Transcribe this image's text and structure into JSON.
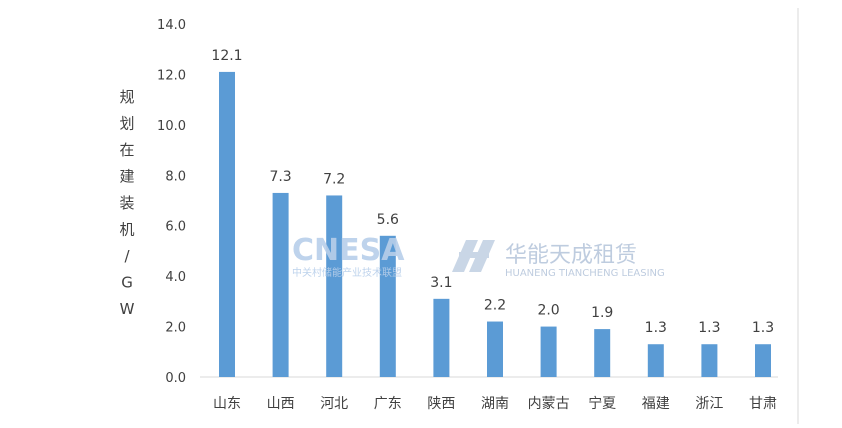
{
  "chart_data": {
    "type": "bar",
    "ylabel": "规划在建装机/GW",
    "ylim": [
      0,
      14
    ],
    "yticks": [
      "0.0",
      "2.0",
      "4.0",
      "6.0",
      "8.0",
      "10.0",
      "12.0",
      "14.0"
    ],
    "categories": [
      "山东",
      "山西",
      "河北",
      "广东",
      "陕西",
      "湖南",
      "内蒙古",
      "宁夏",
      "福建",
      "浙江",
      "甘肃"
    ],
    "values": [
      12.1,
      7.3,
      7.2,
      5.6,
      3.1,
      2.2,
      2.0,
      1.9,
      1.3,
      1.3,
      1.3
    ],
    "data_labels": [
      "12.1",
      "7.3",
      "7.2",
      "5.6",
      "3.1",
      "2.2",
      "2.0",
      "1.9",
      "1.3",
      "1.3",
      "1.3"
    ],
    "bar_color": "#5b9bd5",
    "grid": false
  },
  "watermarks": {
    "cnesa": "CNESA",
    "cnesa_sub": "中关村储能产业技术联盟",
    "huaneng_cn": "华能天成租赁",
    "huaneng_en": "HUANENG TIANCHENG LEASING"
  }
}
